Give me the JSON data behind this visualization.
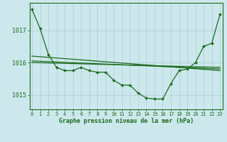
{
  "background_color": "#cce8ec",
  "grid_color": "#aacdd4",
  "line_color": "#1a6b1a",
  "title": "Graphe pression niveau de la mer (hPa)",
  "ylabel_values": [
    1015,
    1016,
    1017
  ],
  "x_hours": [
    0,
    1,
    2,
    3,
    4,
    5,
    6,
    7,
    8,
    9,
    10,
    11,
    12,
    13,
    14,
    15,
    16,
    17,
    18,
    19,
    20,
    21,
    22,
    23
  ],
  "series_main": [
    1017.65,
    1017.05,
    1016.25,
    1015.85,
    1015.75,
    1015.75,
    1015.85,
    1015.75,
    1015.7,
    1015.7,
    1015.45,
    1015.3,
    1015.3,
    1015.05,
    1014.9,
    1014.87,
    1014.87,
    1015.35,
    1015.75,
    1015.8,
    1016.0,
    1016.5,
    1016.6,
    1017.5
  ],
  "series_line1": [
    1016.2,
    1015.75
  ],
  "series_line1_x": [
    0,
    23
  ],
  "series_line2": [
    1016.0,
    1015.85
  ],
  "series_line2_x": [
    0,
    23
  ],
  "series_line3": [
    1016.05,
    1015.8
  ],
  "series_line3_x": [
    0,
    23
  ],
  "ylim": [
    1014.55,
    1017.85
  ],
  "xlim": [
    -0.3,
    23.3
  ]
}
